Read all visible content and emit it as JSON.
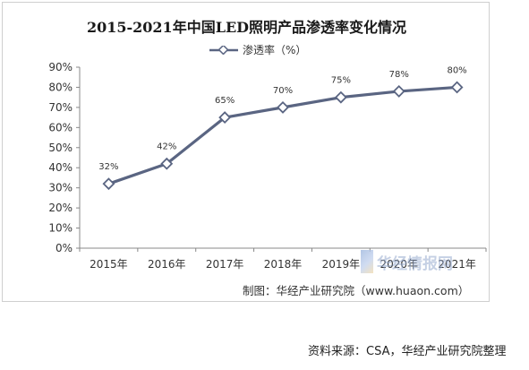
{
  "chart_data": {
    "type": "line",
    "title": "2015-2021年中国LED照明产品渗透率变化情况",
    "categories": [
      "2015年",
      "2016年",
      "2017年",
      "2018年",
      "2019年",
      "2020年",
      "2021年"
    ],
    "series": [
      {
        "name": "渗透率（%）",
        "values": [
          32,
          42,
          65,
          70,
          75,
          78,
          80
        ],
        "data_labels": [
          "32%",
          "42%",
          "65%",
          "70%",
          "75%",
          "78%",
          "80%"
        ],
        "color": "#5a6582"
      }
    ],
    "y_ticks": [
      "0%",
      "10%",
      "20%",
      "30%",
      "40%",
      "50%",
      "60%",
      "70%",
      "80%",
      "90%"
    ],
    "ylim": [
      0,
      90
    ],
    "xlabel": "",
    "ylabel": "",
    "grid": false,
    "legend_position": "top"
  },
  "credit": "制图：华经产业研究院（www.huaon.com）",
  "watermark": "华经情报网",
  "source": "资料来源：CSA，华经产业研究院整理"
}
